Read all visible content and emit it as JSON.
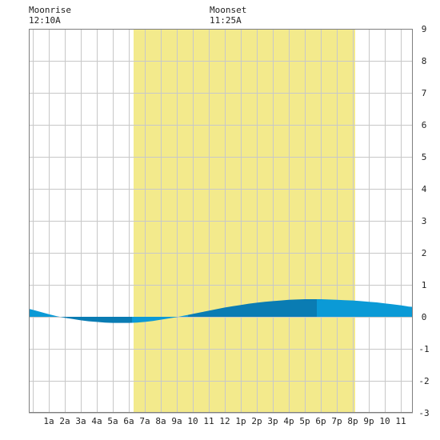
{
  "header": {
    "moonrise_label": "Moonrise",
    "moonrise_time": "12:10A",
    "moonset_label": "Moonset",
    "moonset_time": "11:25A"
  },
  "chart_data": {
    "type": "area",
    "title": "",
    "xlabel": "",
    "ylabel": "",
    "x_range_hours": [
      -0.25,
      23.75
    ],
    "ylim": [
      -3,
      9
    ],
    "y_ticks": [
      -3,
      -2,
      -1,
      0,
      1,
      2,
      3,
      4,
      5,
      6,
      7,
      8,
      9
    ],
    "x_tick_hours": [
      1,
      2,
      3,
      4,
      5,
      6,
      7,
      8,
      9,
      10,
      11,
      12,
      13,
      14,
      15,
      16,
      17,
      18,
      19,
      20,
      21,
      22,
      23
    ],
    "x_tick_labels": [
      "1a",
      "2a",
      "3a",
      "4a",
      "5a",
      "6a",
      "7a",
      "8a",
      "9a",
      "10",
      "11",
      "12",
      "1p",
      "2p",
      "3p",
      "4p",
      "5p",
      "6p",
      "7p",
      "8p",
      "9p",
      "10",
      "11"
    ],
    "grid": true,
    "daylight": {
      "start_hour": 6.3,
      "end_hour": 20.15,
      "color": "#f3ea8c"
    },
    "series": [
      {
        "x": [
          -0.25,
          0,
          0.5,
          1,
          1.5,
          2,
          2.5,
          3,
          3.5,
          4,
          4.5,
          5,
          5.5,
          6,
          6.5,
          7,
          7.5,
          8,
          8.5,
          9,
          9.5,
          10,
          10.5,
          11,
          11.5,
          12,
          12.5,
          13,
          13.5,
          14,
          14.5,
          15,
          15.5,
          16,
          16.5,
          17,
          17.5,
          18,
          18.5,
          19,
          19.5,
          20,
          20.5,
          21,
          21.5,
          22,
          22.5,
          23,
          23.5,
          23.75
        ],
        "y": [
          0.25,
          0.22,
          0.15,
          0.08,
          0.02,
          -0.03,
          -0.07,
          -0.11,
          -0.14,
          -0.16,
          -0.18,
          -0.19,
          -0.19,
          -0.19,
          -0.18,
          -0.16,
          -0.13,
          -0.09,
          -0.05,
          -0.01,
          0.04,
          0.09,
          0.14,
          0.19,
          0.24,
          0.29,
          0.33,
          0.37,
          0.41,
          0.44,
          0.47,
          0.49,
          0.51,
          0.53,
          0.54,
          0.55,
          0.55,
          0.55,
          0.54,
          0.53,
          0.52,
          0.51,
          0.49,
          0.47,
          0.45,
          0.42,
          0.39,
          0.36,
          0.32,
          0.31
        ]
      }
    ],
    "tide_fill_shades": [
      {
        "from_hour": -0.25,
        "to_hour": 1.8,
        "color": "#0b9ad6"
      },
      {
        "from_hour": 1.8,
        "to_hour": 6.2,
        "color": "#0a7cb3"
      },
      {
        "from_hour": 6.2,
        "to_hour": 9.7,
        "color": "#0b9ad6"
      },
      {
        "from_hour": 9.7,
        "to_hour": 17.75,
        "color": "#0a7cb3"
      },
      {
        "from_hour": 17.75,
        "to_hour": 23.75,
        "color": "#0b9ad6"
      }
    ],
    "colors": {
      "grid": "#c8c8c8",
      "background": "#ffffff",
      "frame": "#7f7f7f"
    }
  }
}
